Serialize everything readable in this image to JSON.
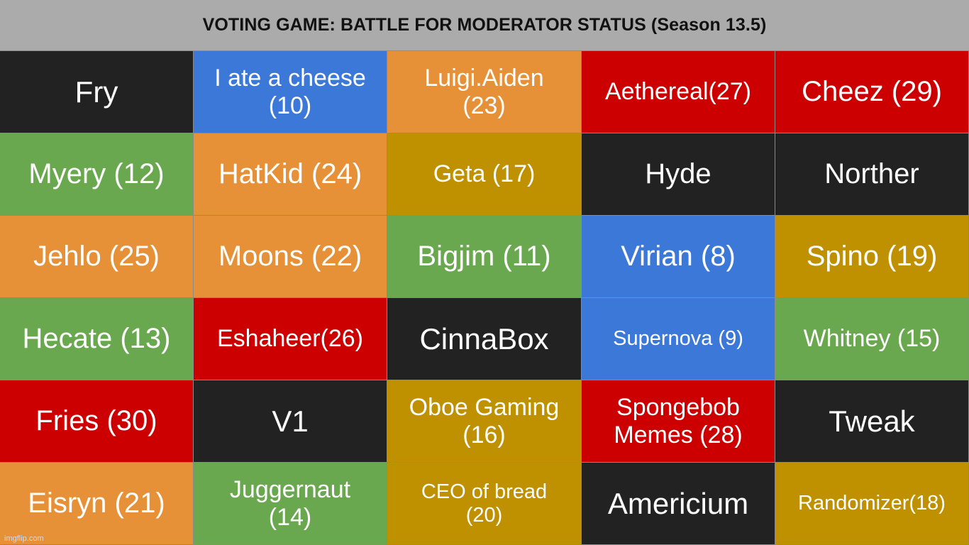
{
  "header": {
    "title": "VOTING GAME: BATTLE FOR MODERATOR STATUS (Season 13.5)"
  },
  "colors": {
    "black": "#222222",
    "blue": "#3c78d8",
    "orange": "#e69138",
    "red": "#cc0000",
    "green": "#6aa84f",
    "gold": "#bf9000",
    "header_bg": "#ababab"
  },
  "grid": {
    "rows": [
      [
        {
          "label": "Fry",
          "color": "black"
        },
        {
          "label": "I ate a cheese\n(10)",
          "color": "blue"
        },
        {
          "label": "Luigi.Aiden\n(23)",
          "color": "orange"
        },
        {
          "label": "Aethereal(27)",
          "color": "red"
        },
        {
          "label": "Cheez (29)",
          "color": "red"
        }
      ],
      [
        {
          "label": "Myery (12)",
          "color": "green"
        },
        {
          "label": "HatKid (24)",
          "color": "orange"
        },
        {
          "label": "Geta (17)",
          "color": "gold"
        },
        {
          "label": "Hyde",
          "color": "black"
        },
        {
          "label": "Norther",
          "color": "black"
        }
      ],
      [
        {
          "label": "Jehlo (25)",
          "color": "orange"
        },
        {
          "label": "Moons (22)",
          "color": "orange"
        },
        {
          "label": "Bigjim (11)",
          "color": "green"
        },
        {
          "label": "Virian (8)",
          "color": "blue"
        },
        {
          "label": "Spino (19)",
          "color": "gold"
        }
      ],
      [
        {
          "label": "Hecate (13)",
          "color": "green"
        },
        {
          "label": "Eshaheer(26)",
          "color": "red"
        },
        {
          "label": "CinnaBox",
          "color": "black"
        },
        {
          "label": "Supernova (9)",
          "color": "blue"
        },
        {
          "label": "Whitney (15)",
          "color": "green"
        }
      ],
      [
        {
          "label": "Fries (30)",
          "color": "red"
        },
        {
          "label": "V1",
          "color": "black"
        },
        {
          "label": "Oboe Gaming\n(16)",
          "color": "gold"
        },
        {
          "label": "Spongebob\nMemes (28)",
          "color": "red"
        },
        {
          "label": "Tweak",
          "color": "black"
        }
      ],
      [
        {
          "label": "Eisryn (21)",
          "color": "orange"
        },
        {
          "label": "Juggernaut\n(14)",
          "color": "green"
        },
        {
          "label": "CEO of bread\n(20)",
          "color": "gold"
        },
        {
          "label": "Americium",
          "color": "black"
        },
        {
          "label": "Randomizer(18)",
          "color": "gold"
        }
      ]
    ]
  },
  "watermark": "imgflip.com"
}
